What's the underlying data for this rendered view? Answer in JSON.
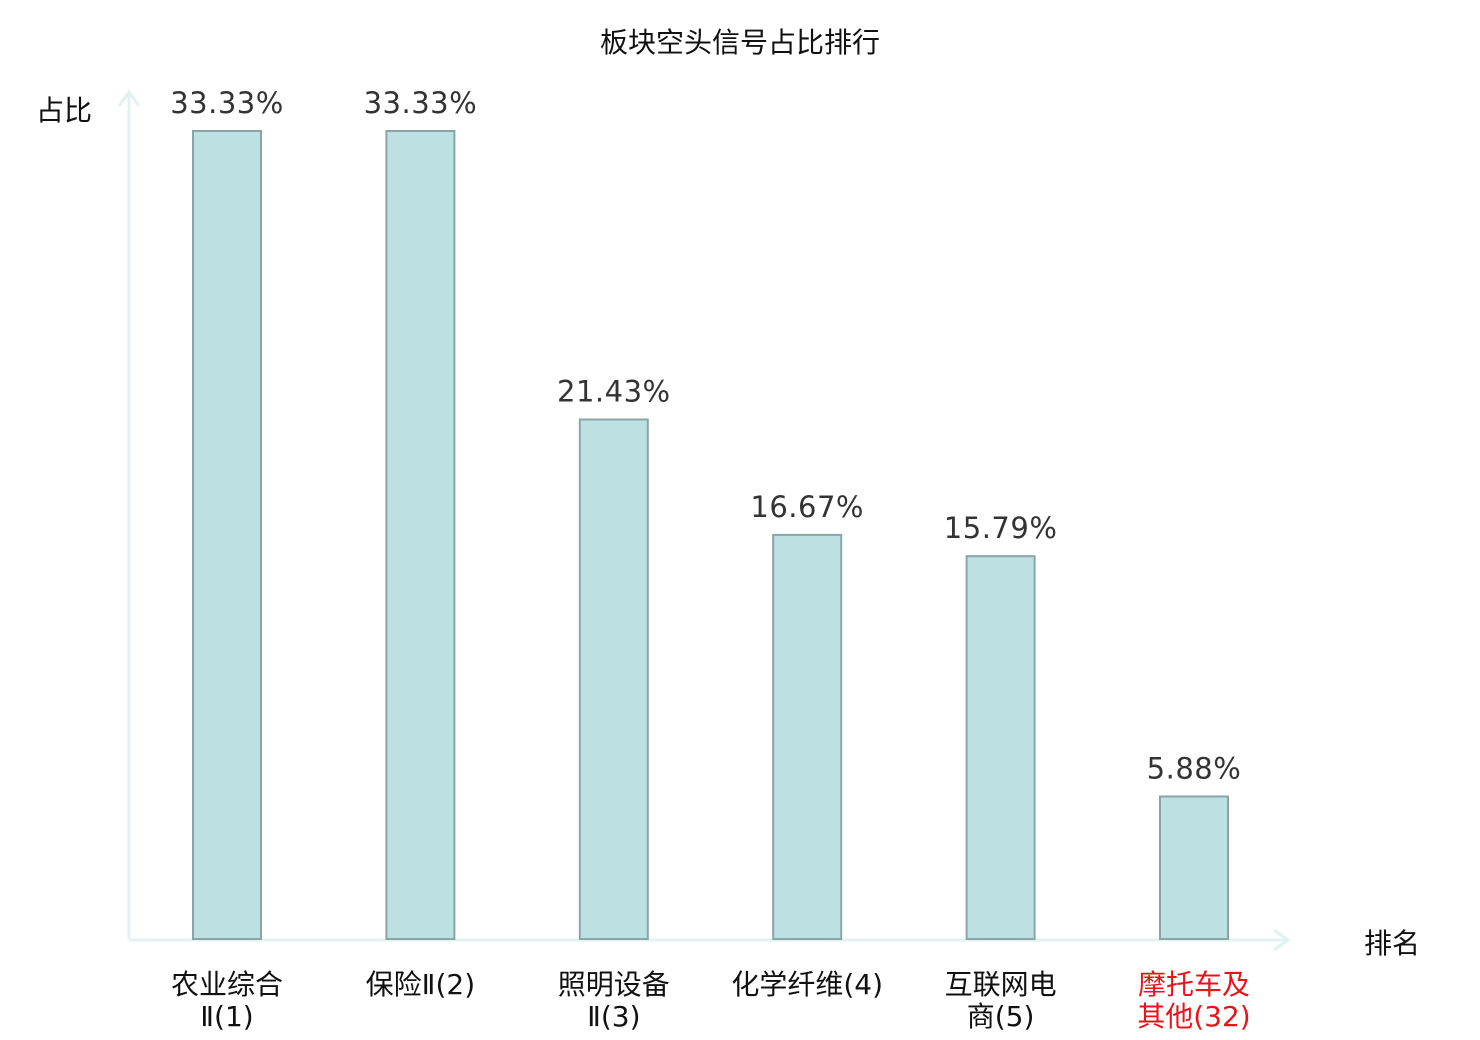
{
  "chart_data": {
    "type": "bar",
    "title": "板块空头信号占比排行",
    "ylabel": "占比",
    "xlabel": "排名",
    "ylim": [
      0,
      33.33
    ],
    "grid": false,
    "categories": [
      {
        "lines": [
          "农业综合",
          "Ⅱ(1)"
        ],
        "highlight": false
      },
      {
        "lines": [
          "保险Ⅱ(2)"
        ],
        "highlight": false
      },
      {
        "lines": [
          "照明设备",
          "Ⅱ(3)"
        ],
        "highlight": false
      },
      {
        "lines": [
          "化学纤维(4)"
        ],
        "highlight": false
      },
      {
        "lines": [
          "互联网电",
          "商(5)"
        ],
        "highlight": false
      },
      {
        "lines": [
          "摩托车及",
          "其他(32)"
        ],
        "highlight": true
      }
    ],
    "values": [
      33.33,
      33.33,
      21.43,
      16.67,
      15.79,
      5.88
    ],
    "value_labels": [
      "33.33%",
      "33.33%",
      "21.43%",
      "16.67%",
      "15.79%",
      "5.88%"
    ],
    "colors": {
      "bar_fill": "#bde0e3",
      "bar_stroke": "#8aa5a8",
      "axis": "#e2f2f0",
      "highlight_text": "#e8141a"
    }
  }
}
